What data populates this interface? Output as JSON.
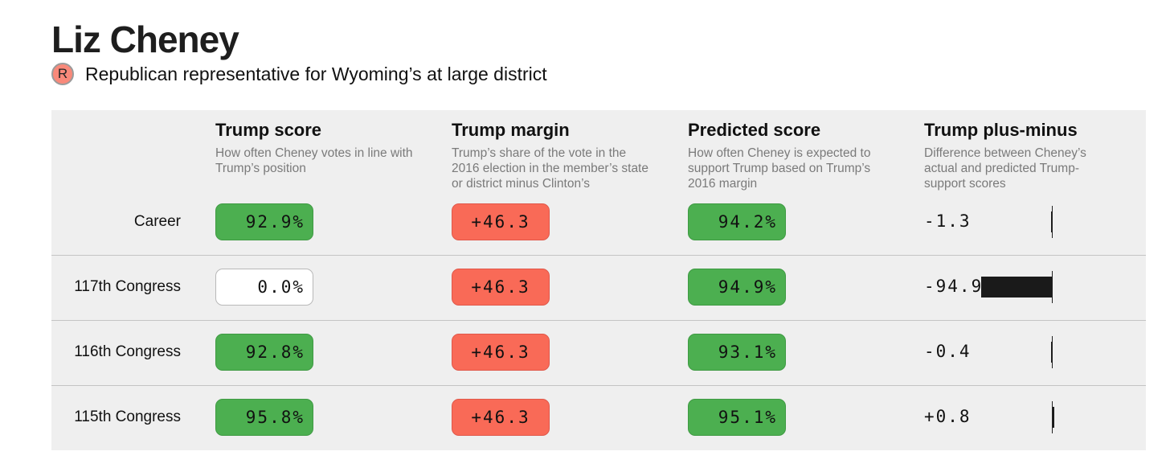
{
  "member": {
    "name": "Liz Cheney",
    "party_letter": "R",
    "party_color": "#f9897a",
    "description": "Republican representative for Wyoming’s at large district"
  },
  "columns": [
    {
      "title": "Trump score",
      "description": "How often Cheney votes in line with Trump’s position"
    },
    {
      "title": "Trump margin",
      "description": "Trump’s share of the vote in the 2016 election in the member’s state or district minus Clinton’s"
    },
    {
      "title": "Predicted score",
      "description": "How often Cheney is expected to support Trump based on Trump’s 2016 margin"
    },
    {
      "title": "Trump plus-minus",
      "description": "Difference between Cheney’s actual and predicted Trump-support scores"
    }
  ],
  "colors": {
    "green": "#4caf50",
    "red": "#f96a57",
    "panel": "#efefef",
    "bar": "#1a1a1a"
  },
  "rows": [
    {
      "label": "Career",
      "trump_score": "92.9%",
      "trump_score_style": "green",
      "trump_margin": "+46.3",
      "predicted_score": "94.2%",
      "plus_minus": "-1.3",
      "plus_minus_value": -1.3
    },
    {
      "label": "117th Congress",
      "trump_score": "0.0%",
      "trump_score_style": "white",
      "trump_margin": "+46.3",
      "predicted_score": "94.9%",
      "plus_minus": "-94.9",
      "plus_minus_value": -94.9
    },
    {
      "label": "116th Congress",
      "trump_score": "92.8%",
      "trump_score_style": "green",
      "trump_margin": "+46.3",
      "predicted_score": "93.1%",
      "plus_minus": "-0.4",
      "plus_minus_value": -0.4
    },
    {
      "label": "115th Congress",
      "trump_score": "95.8%",
      "trump_score_style": "green",
      "trump_margin": "+46.3",
      "predicted_score": "95.1%",
      "plus_minus": "+0.8",
      "plus_minus_value": 0.8
    }
  ]
}
